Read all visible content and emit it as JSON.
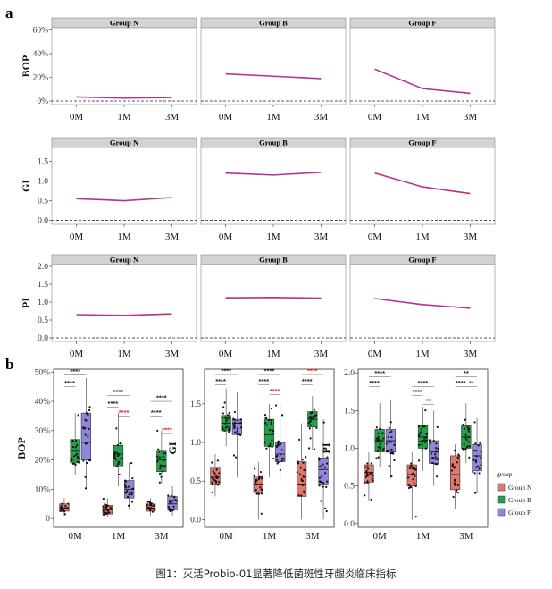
{
  "caption": "图1：灭活Probio-01显著降低菌斑性牙龈炎临床指标",
  "panel_a_label": "a",
  "panel_b_label": "b",
  "colors": {
    "line": "#b5338a",
    "strip": "#d3d3d3",
    "group_n": "#e07870",
    "group_b": "#22a14b",
    "group_f": "#8f86dd",
    "sig_black": "#222222",
    "sig_red": "#e03030"
  },
  "chart_data": [
    {
      "type": "line",
      "panel": "a",
      "rows": [
        {
          "ylabel": "BOP",
          "yticks": [
            "0%",
            "20%",
            "40%",
            "60%"
          ],
          "ytick_values": [
            0,
            20,
            40,
            60
          ],
          "ylim": [
            -3,
            62
          ],
          "facets": [
            {
              "title": "Group N",
              "x": [
                "0M",
                "1M",
                "3M"
              ],
              "y": [
                3.5,
                2.5,
                3.0
              ]
            },
            {
              "title": "Group B",
              "x": [
                "0M",
                "1M",
                "3M"
              ],
              "y": [
                23,
                21,
                19
              ]
            },
            {
              "title": "Group F",
              "x": [
                "0M",
                "1M",
                "3M"
              ],
              "y": [
                27,
                10.5,
                6.5
              ]
            }
          ]
        },
        {
          "ylabel": "GI",
          "yticks": [
            "0.0",
            "0.5",
            "1.0",
            "1.5"
          ],
          "ytick_values": [
            0,
            0.5,
            1.0,
            1.5
          ],
          "ylim": [
            -0.1,
            1.85
          ],
          "facets": [
            {
              "title": "Group N",
              "x": [
                "0M",
                "1M",
                "3M"
              ],
              "y": [
                0.55,
                0.5,
                0.58
              ]
            },
            {
              "title": "Group B",
              "x": [
                "0M",
                "1M",
                "3M"
              ],
              "y": [
                1.2,
                1.15,
                1.22
              ]
            },
            {
              "title": "Group F",
              "x": [
                "0M",
                "1M",
                "3M"
              ],
              "y": [
                1.2,
                0.85,
                0.68
              ]
            }
          ]
        },
        {
          "ylabel": "PI",
          "yticks": [
            "0.0",
            "0.5",
            "1.0",
            "1.5",
            "2.0"
          ],
          "ytick_values": [
            0,
            0.5,
            1.0,
            1.5,
            2.0
          ],
          "ylim": [
            -0.1,
            2.05
          ],
          "facets": [
            {
              "title": "Group N",
              "x": [
                "0M",
                "1M",
                "3M"
              ],
              "y": [
                0.65,
                0.63,
                0.67
              ]
            },
            {
              "title": "Group B",
              "x": [
                "0M",
                "1M",
                "3M"
              ],
              "y": [
                1.12,
                1.13,
                1.11
              ]
            },
            {
              "title": "Group F",
              "x": [
                "0M",
                "1M",
                "3M"
              ],
              "y": [
                1.1,
                0.93,
                0.83
              ]
            }
          ]
        }
      ]
    },
    {
      "type": "box",
      "panel": "b",
      "legend_title": "group",
      "legend": [
        "Group N",
        "Group B",
        "Group F"
      ],
      "plots": [
        {
          "ylabel": "BOP",
          "yticks": [
            "0",
            "10%",
            "20%",
            "30%",
            "40%",
            "50%"
          ],
          "ytick_values": [
            0,
            10,
            20,
            30,
            40,
            50
          ],
          "ylim": [
            -3,
            51
          ],
          "x": [
            "0M",
            "1M",
            "3M"
          ],
          "boxes": [
            [
              [
                1,
                2.5,
                3.5,
                5,
                7
              ],
              [
                15,
                19,
                23,
                27,
                36
              ],
              [
                10,
                20,
                26,
                36,
                48
              ]
            ],
            [
              [
                0.5,
                1.5,
                3,
                4.5,
                7
              ],
              [
                11,
                18,
                22,
                25,
                36
              ],
              [
                3,
                7,
                10,
                13,
                19
              ]
            ],
            [
              [
                1,
                2.5,
                3.5,
                5,
                7
              ],
              [
                12,
                16,
                20,
                23,
                30
              ],
              [
                1,
                3,
                5,
                7.5,
                11
              ]
            ]
          ],
          "sig": [
            {
              "x1": "0M",
              "x2": "0M+",
              "y": 49,
              "label": "****",
              "color": "black"
            },
            {
              "x1": "0M",
              "x2": "0M*",
              "y": 45,
              "label": "****",
              "color": "black"
            },
            {
              "x1": "1M",
              "x2": "1M+",
              "y": 42,
              "label": "****",
              "color": "black"
            },
            {
              "x1": "1M",
              "x2": "1M*",
              "y": 38,
              "label": "****",
              "color": "black"
            },
            {
              "x1": "1M*",
              "x2": "1M+",
              "y": 35,
              "label": "****",
              "color": "red"
            },
            {
              "x1": "3M",
              "x2": "3M+",
              "y": 40,
              "label": "****",
              "color": "black"
            },
            {
              "x1": "3M",
              "x2": "3M*",
              "y": 35,
              "label": "****",
              "color": "black"
            },
            {
              "x1": "3M*",
              "x2": "3M+",
              "y": 29,
              "label": "****",
              "color": "red"
            }
          ]
        },
        {
          "ylabel": "GI",
          "yticks": [
            "0.0",
            "0.5",
            "1.0",
            "1.5"
          ],
          "ytick_values": [
            0,
            0.5,
            1.0,
            1.5
          ],
          "ylim": [
            -0.1,
            1.95
          ],
          "x": [
            "0M",
            "1M",
            "3M"
          ],
          "boxes": [
            [
              [
                0.3,
                0.45,
                0.55,
                0.68,
                0.85
              ],
              [
                0.95,
                1.15,
                1.25,
                1.35,
                1.7
              ],
              [
                0.55,
                1.1,
                1.25,
                1.3,
                1.65
              ]
            ],
            [
              [
                0.0,
                0.35,
                0.45,
                0.55,
                0.75
              ],
              [
                0.55,
                0.95,
                1.1,
                1.3,
                1.5
              ],
              [
                0.5,
                0.75,
                0.85,
                1.0,
                1.5
              ]
            ],
            [
              [
                0.0,
                0.3,
                0.45,
                0.75,
                1.25
              ],
              [
                0.9,
                1.2,
                1.3,
                1.4,
                1.6
              ],
              [
                0.0,
                0.45,
                0.65,
                0.8,
                1.3
              ]
            ]
          ],
          "sig": [
            {
              "x1": "0M",
              "x2": "0M+",
              "y": 1.88,
              "label": "****",
              "color": "black"
            },
            {
              "x1": "0M",
              "x2": "0M*",
              "y": 1.75,
              "label": "****",
              "color": "black"
            },
            {
              "x1": "1M",
              "x2": "1M+",
              "y": 1.88,
              "label": "****",
              "color": "black"
            },
            {
              "x1": "1M",
              "x2": "1M*",
              "y": 1.75,
              "label": "****",
              "color": "black"
            },
            {
              "x1": "1M*",
              "x2": "1M+",
              "y": 1.62,
              "label": "****",
              "color": "red"
            },
            {
              "x1": "3M",
              "x2": "3M+",
              "y": 1.88,
              "label": "****",
              "color": "red"
            },
            {
              "x1": "3M",
              "x2": "3M*",
              "y": 1.75,
              "label": "****",
              "color": "black"
            }
          ]
        },
        {
          "ylabel": "PI",
          "yticks": [
            "0.0",
            "0.5",
            "1.0",
            "1.5",
            "2.0"
          ],
          "ytick_values": [
            0,
            0.5,
            1.0,
            1.5,
            2.0
          ],
          "ylim": [
            -0.05,
            2.05
          ],
          "x": [
            "0M",
            "1M",
            "3M"
          ],
          "boxes": [
            [
              [
                0.3,
                0.55,
                0.68,
                0.78,
                0.95
              ],
              [
                0.75,
                0.95,
                1.1,
                1.25,
                1.6
              ],
              [
                0.6,
                0.95,
                1.1,
                1.25,
                1.65
              ]
            ],
            [
              [
                0.05,
                0.5,
                0.65,
                0.78,
                0.95
              ],
              [
                0.7,
                1.0,
                1.15,
                1.3,
                1.55
              ],
              [
                0.5,
                0.8,
                0.95,
                1.1,
                1.5
              ]
            ],
            [
              [
                0.2,
                0.45,
                0.65,
                0.9,
                1.05
              ],
              [
                0.8,
                1.0,
                1.15,
                1.3,
                1.6
              ],
              [
                0.4,
                0.7,
                0.9,
                1.05,
                1.4
              ]
            ]
          ],
          "sig": [
            {
              "x1": "0M",
              "x2": "0M+",
              "y": 1.95,
              "label": "****",
              "color": "black"
            },
            {
              "x1": "0M",
              "x2": "0M*",
              "y": 1.82,
              "label": "****",
              "color": "black"
            },
            {
              "x1": "1M",
              "x2": "1M+",
              "y": 1.82,
              "label": "****",
              "color": "black"
            },
            {
              "x1": "1M",
              "x2": "1M*",
              "y": 1.7,
              "label": "****",
              "color": "black"
            },
            {
              "x1": "1M*",
              "x2": "1M+",
              "y": 1.58,
              "label": "**",
              "color": "red"
            },
            {
              "x1": "3M",
              "x2": "3M+",
              "y": 1.95,
              "label": "**",
              "color": "black"
            },
            {
              "x1": "3M",
              "x2": "3M*",
              "y": 1.82,
              "label": "****",
              "color": "black"
            },
            {
              "x1": "3M*",
              "x2": "3M+",
              "y": 1.82,
              "label": "**",
              "color": "red"
            }
          ]
        }
      ]
    }
  ]
}
